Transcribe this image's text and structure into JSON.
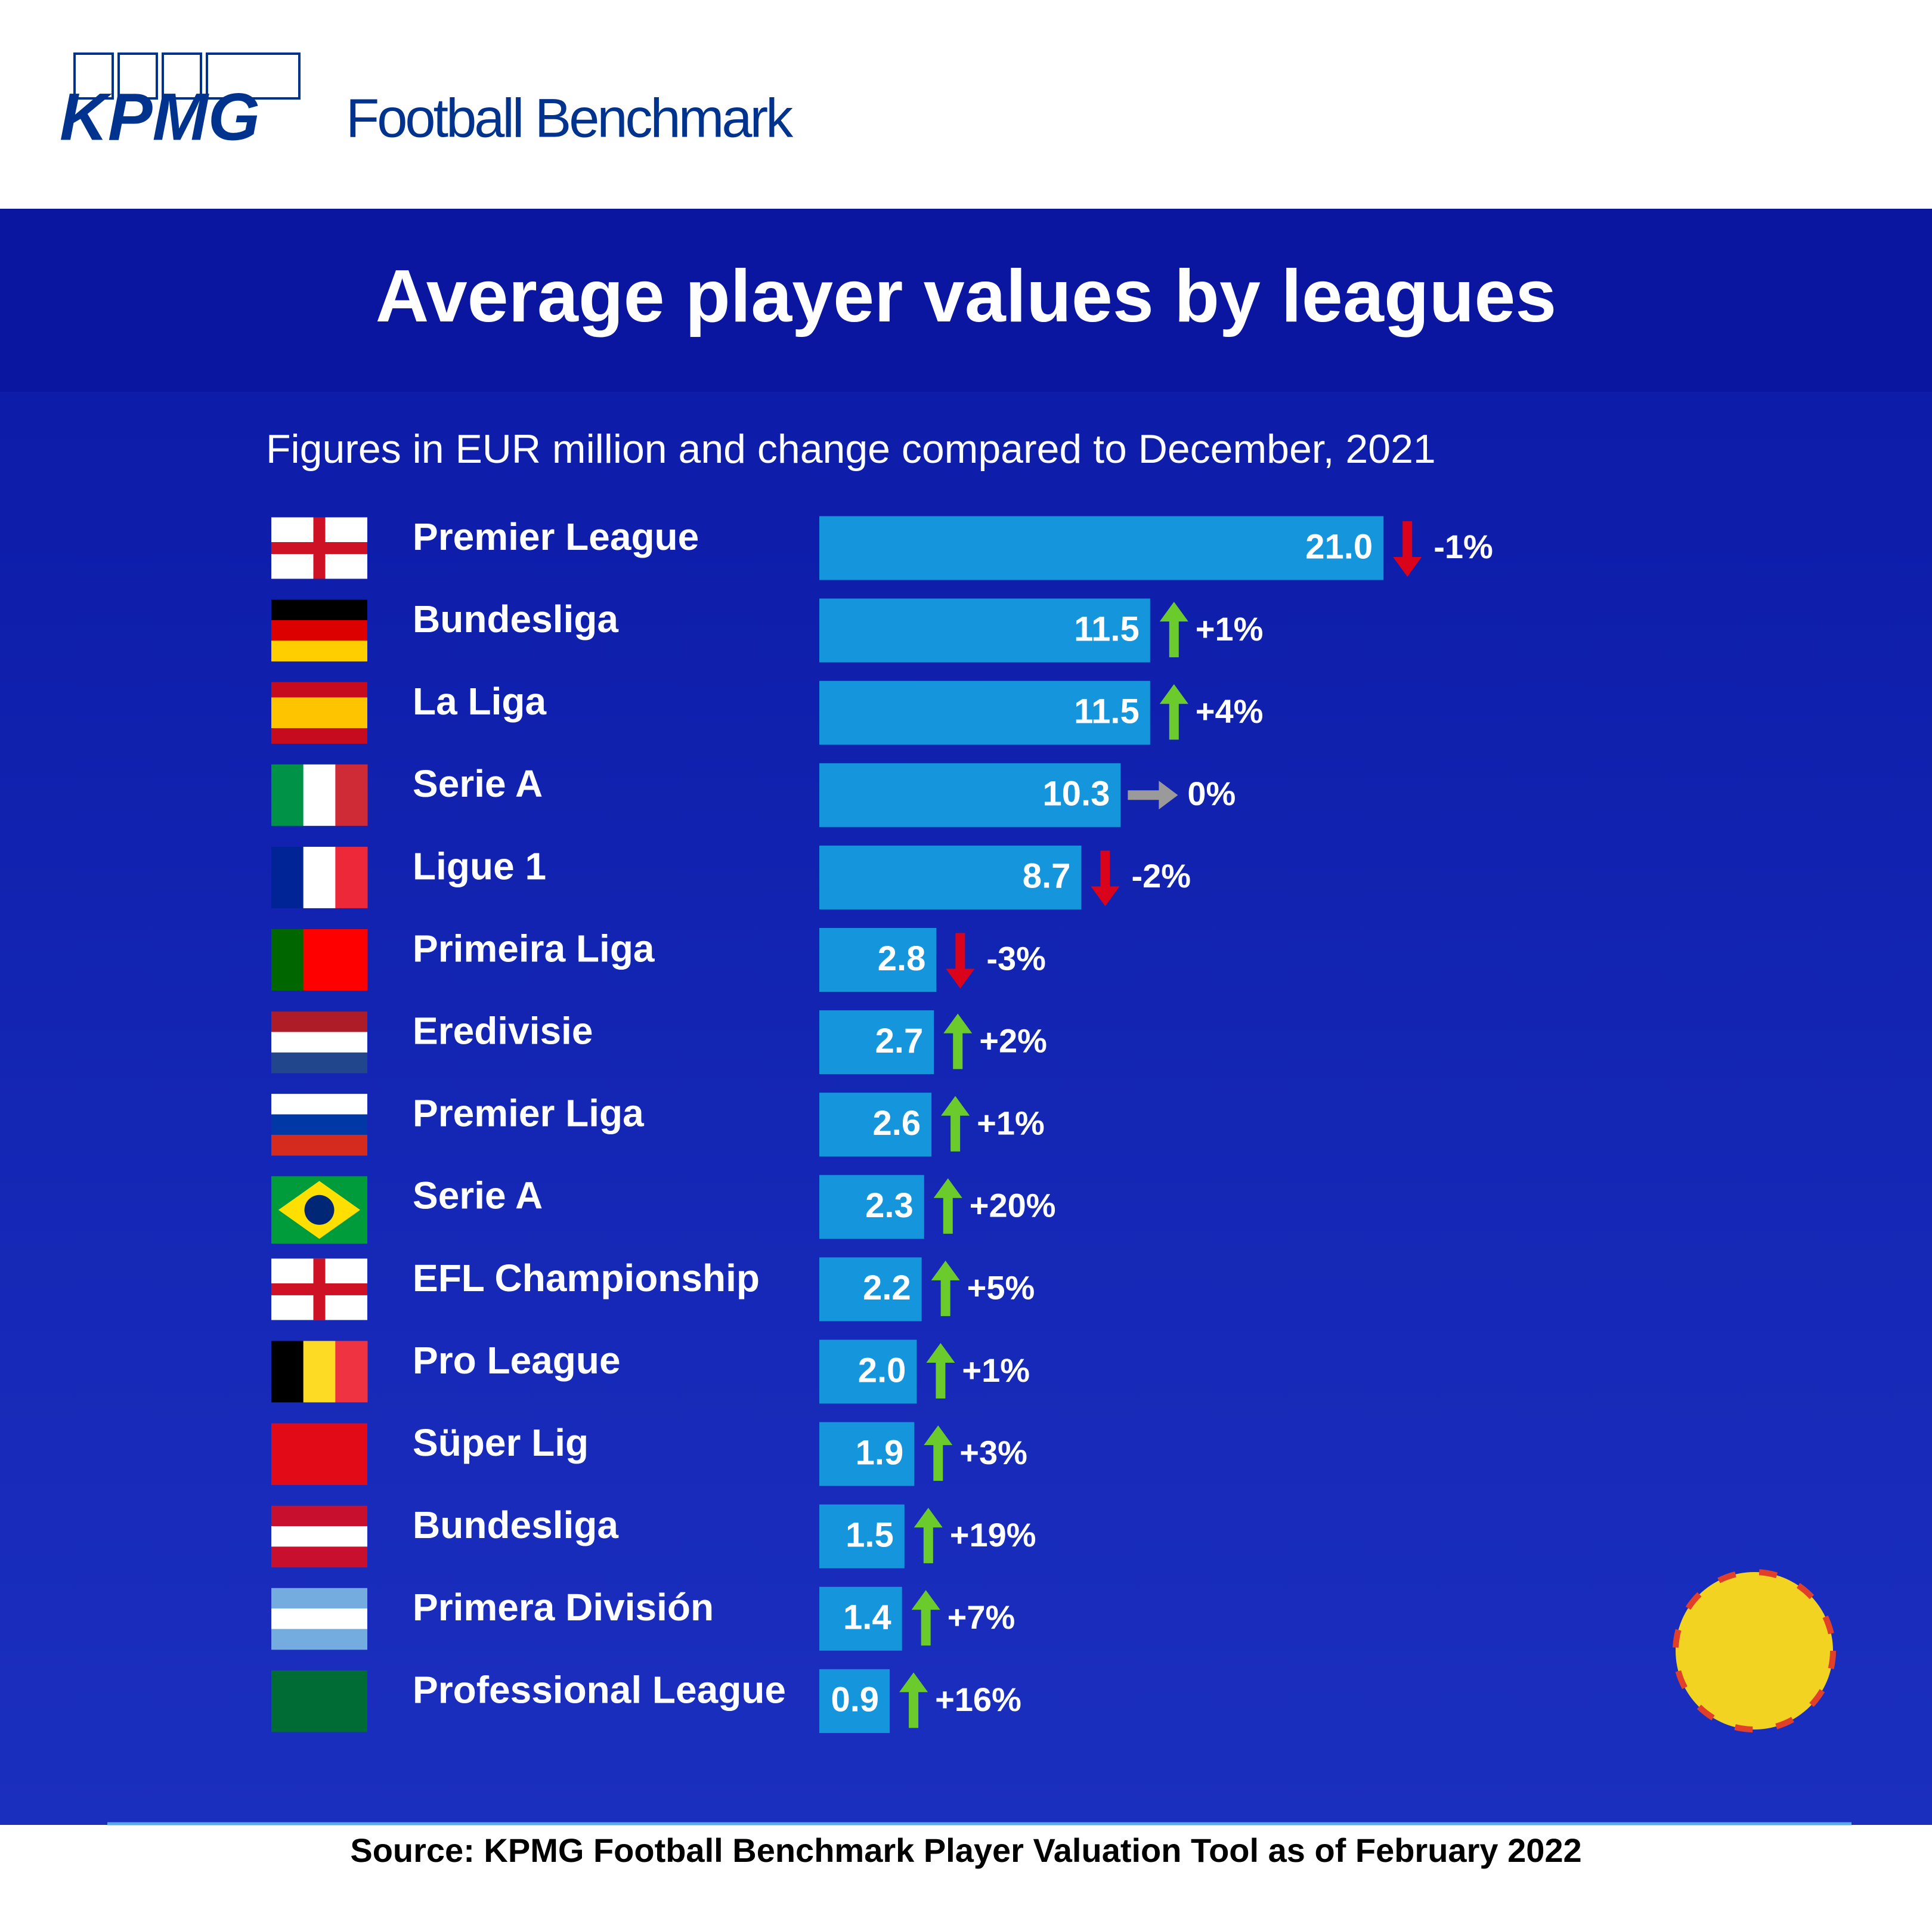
{
  "header": {
    "logo": "KPMG",
    "product": "Football Benchmark"
  },
  "chart_data": {
    "type": "bar",
    "orientation": "horizontal",
    "title": "Average player values by leagues",
    "subtitle": "Figures in EUR million and change compared to December, 2021",
    "categories": [
      "Premier League",
      "Bundesliga",
      "La Liga",
      "Serie A",
      "Ligue 1",
      "Primeira Liga",
      "Eredivisie",
      "Premier Liga",
      "Serie A",
      "EFL Championship",
      "Pro League",
      "Süper Lig",
      "Bundesliga",
      "Primera División",
      "Professional League"
    ],
    "values": [
      21.0,
      11.5,
      11.5,
      10.3,
      8.7,
      2.8,
      2.7,
      2.6,
      2.3,
      2.2,
      2.0,
      1.9,
      1.5,
      1.4,
      0.9
    ],
    "value_labels": [
      "21.0",
      "11.5",
      "11.5",
      "10.3",
      "8.7",
      "2.8",
      "2.7",
      "2.6",
      "2.3",
      "2.2",
      "2.0",
      "1.9",
      "1.5",
      "1.4",
      "0.9"
    ],
    "changes": [
      -1,
      1,
      4,
      0,
      -2,
      -3,
      2,
      1,
      20,
      5,
      1,
      3,
      19,
      7,
      16
    ],
    "change_labels": [
      "-1%",
      "+1%",
      "+4%",
      "0%",
      "-2%",
      "-3%",
      "+2%",
      "+1%",
      "+20%",
      "+5%",
      "+1%",
      "+3%",
      "+19%",
      "+7%",
      "+16%"
    ],
    "color": "#1596dc",
    "source": "Source: KPMG Football Benchmark Player Valuation Tool as of February 2022"
  }
}
